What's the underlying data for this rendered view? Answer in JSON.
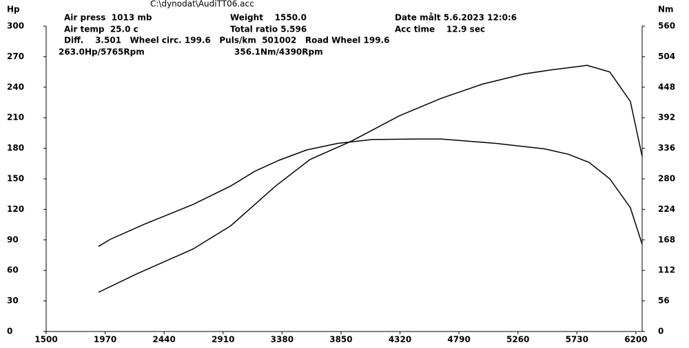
{
  "chart_data": {
    "type": "line",
    "header": [
      "C:\\dynodat\\AudiTT06.acc",
      "Air press  1013 mb",
      "Air temp  25.0 c",
      "Diff.    3.501   Wheel circ. 199.6   Puls/km  501002   Road Wheel 199.6",
      "Weight    1550.0",
      "Total ratio 5.596",
      "Date målt 5.6.2023 12:0:6",
      "Acc time    12.9 sec",
      "263.0Hp/5765Rpm",
      "356.1Nm/4390Rpm"
    ],
    "ylabel": "Hp",
    "y2label": "Nm",
    "xlim": [
      1500,
      6250
    ],
    "xticks": [
      1500,
      1970,
      2440,
      2910,
      3380,
      3850,
      4320,
      4790,
      5260,
      5730,
      6200
    ],
    "ylim": [
      0,
      300
    ],
    "yticks": [
      0,
      30,
      60,
      90,
      120,
      150,
      180,
      210,
      240,
      270,
      300
    ],
    "y2lim": [
      0,
      560
    ],
    "y2ticks": [
      0,
      56,
      112,
      168,
      224,
      280,
      336,
      392,
      448,
      504,
      560
    ],
    "series": [
      {
        "name": "Hp",
        "color": "#000000",
        "x": [
          1917,
          2230,
          2670,
          2972,
          3329,
          3603,
          3933,
          4317,
          4647,
          4976,
          5306,
          5525,
          5811,
          5992,
          6156,
          6250
        ],
        "values": [
          38.5,
          57,
          81,
          104,
          143,
          169,
          187,
          212,
          229,
          243,
          253,
          257,
          261.5,
          255,
          226,
          172
        ]
      },
      {
        "name": "Nm",
        "color": "#000000",
        "axis": "y2",
        "x": [
          1917,
          2011,
          2285,
          2670,
          2972,
          3164,
          3356,
          3576,
          3823,
          4097,
          4449,
          4647,
          5086,
          5470,
          5662,
          5827,
          5992,
          6156,
          6250
        ],
        "values": [
          156,
          169,
          197,
          233,
          267,
          294,
          314,
          333,
          345,
          352,
          353,
          353,
          345,
          335,
          325,
          310,
          280,
          227,
          160
        ]
      }
    ]
  }
}
